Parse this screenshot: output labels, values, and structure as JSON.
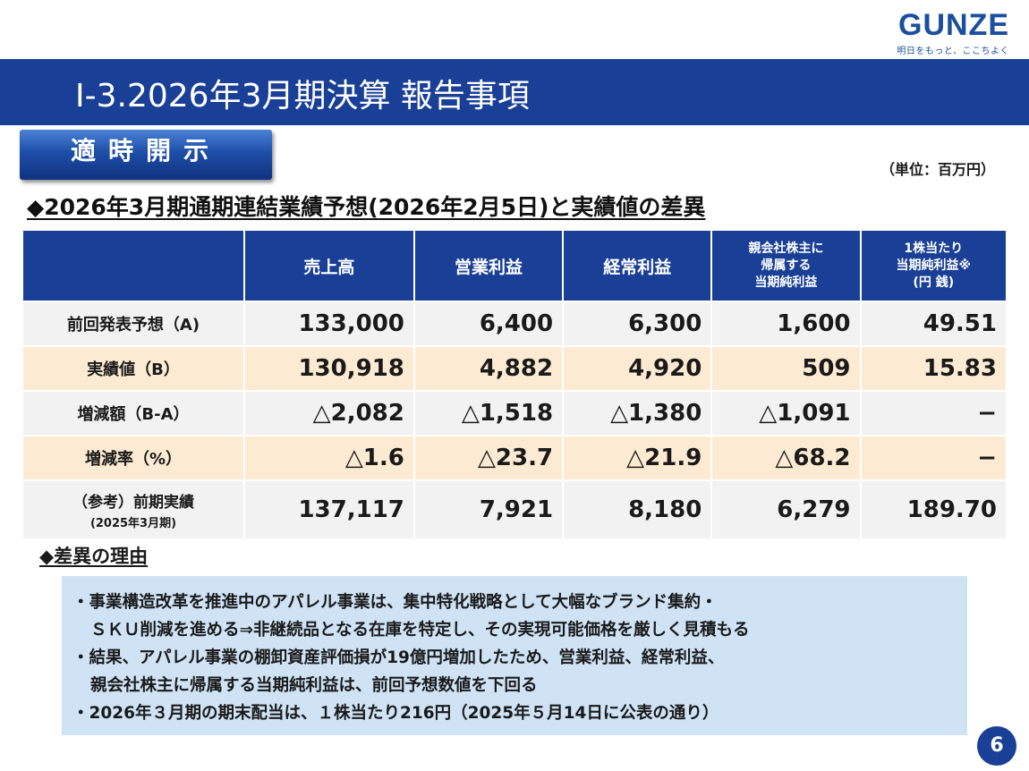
{
  "logo": {
    "brand": "GUNZE",
    "tagline": "明日をもっと、ここちよく"
  },
  "title": "Ⅰ-3.2026年3月期決算 報告事項",
  "badge": "適時開示",
  "unit_note": "（単位：百万円）",
  "section_heading": "◆2026年3月期通期連結業績予想(2026年2月5日)と実績値の差異",
  "table": {
    "headers": [
      "",
      "売上高",
      "営業利益",
      "経常利益",
      [
        "親会社株主に",
        "帰属する",
        "当期純利益"
      ],
      [
        "1株当たり",
        "当期純利益※",
        "(円 銭)"
      ]
    ],
    "rows": [
      {
        "label": "前回発表予想（A)",
        "values": [
          "133,000",
          "6,400",
          "6,300",
          "1,600",
          "49.51"
        ]
      },
      {
        "label": "実績値（B）",
        "values": [
          "130,918",
          "4,882",
          "4,920",
          "509",
          "15.83"
        ]
      },
      {
        "label": "増減額（B-A）",
        "values": [
          "△2,082",
          "△1,518",
          "△1,380",
          "△1,091",
          "−"
        ]
      },
      {
        "label": "増減率（%）",
        "values": [
          "△1.6",
          "△23.7",
          "△21.9",
          "△68.2",
          "−"
        ]
      },
      {
        "label": "（参考）前期実績",
        "sublabel": "(2025年3月期)",
        "values": [
          "137,117",
          "7,921",
          "8,180",
          "6,279",
          "189.70"
        ]
      }
    ]
  },
  "reasons_heading": "◆差異の理由",
  "reasons": [
    "・事業構造改革を推進中のアパレル事業は、集中特化戦略として大幅なブランド集約・",
    "ＳＫＵ削減を進める⇒非継続品となる在庫を特定し、その実現可能価格を厳しく見積もる",
    "・結果、アパレル事業の棚卸資産評価損が19億円増加したため、営業利益、経常利益、",
    "親会社株主に帰属する当期純利益は、前回予想数値を下回る",
    "・2026年３月期の期末配当は、１株当たり216円（2025年５月14日に公表の通り）"
  ],
  "page_number": "6",
  "colors": {
    "brand_blue": "#1a3f96",
    "highlight_row": "#fcebd2",
    "reasons_box": "#cfe3f5"
  }
}
